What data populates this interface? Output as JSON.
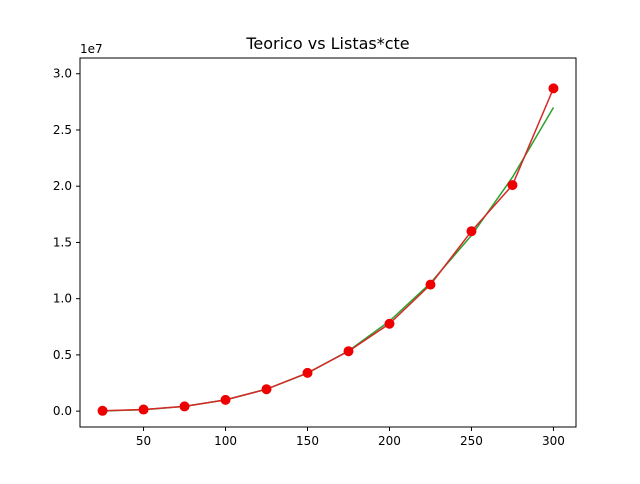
{
  "chart_data": {
    "type": "line",
    "title": "Teorico vs Listas*cte",
    "xlabel": "",
    "ylabel": "",
    "y_offset_label": "1e7",
    "xlim": [
      11.25,
      313.75
    ],
    "ylim": [
      -1411200,
      31400000
    ],
    "x_ticks": [
      50,
      100,
      150,
      200,
      250,
      300
    ],
    "y_ticks": [
      0,
      5000000,
      10000000,
      15000000,
      20000000,
      25000000,
      30000000
    ],
    "x_tick_labels": [
      "50",
      "100",
      "150",
      "200",
      "250",
      "300"
    ],
    "y_tick_labels": [
      "0.0",
      "0.5",
      "1.0",
      "1.5",
      "2.0",
      "2.5",
      "3.0"
    ],
    "grid": false,
    "legend": false,
    "series": [
      {
        "color": "#2ca02c",
        "marker": "none",
        "x": [
          25,
          50,
          75,
          100,
          125,
          150,
          175,
          200,
          225,
          250,
          275,
          300
        ],
        "values": [
          15625,
          125000,
          421875,
          1000000,
          1953125,
          3375000,
          5359375,
          8000000,
          11390625,
          15625000,
          20796875,
          27000000
        ]
      },
      {
        "color": "#d62728",
        "marker": "circle",
        "marker_color": "#ee0000",
        "x": [
          25,
          50,
          75,
          100,
          125,
          150,
          175,
          200,
          225,
          250,
          275,
          300
        ],
        "values": [
          30000,
          140000,
          420000,
          1000000,
          1950000,
          3400000,
          5330000,
          7770000,
          11250000,
          16000000,
          20100000,
          28700000
        ]
      }
    ]
  }
}
